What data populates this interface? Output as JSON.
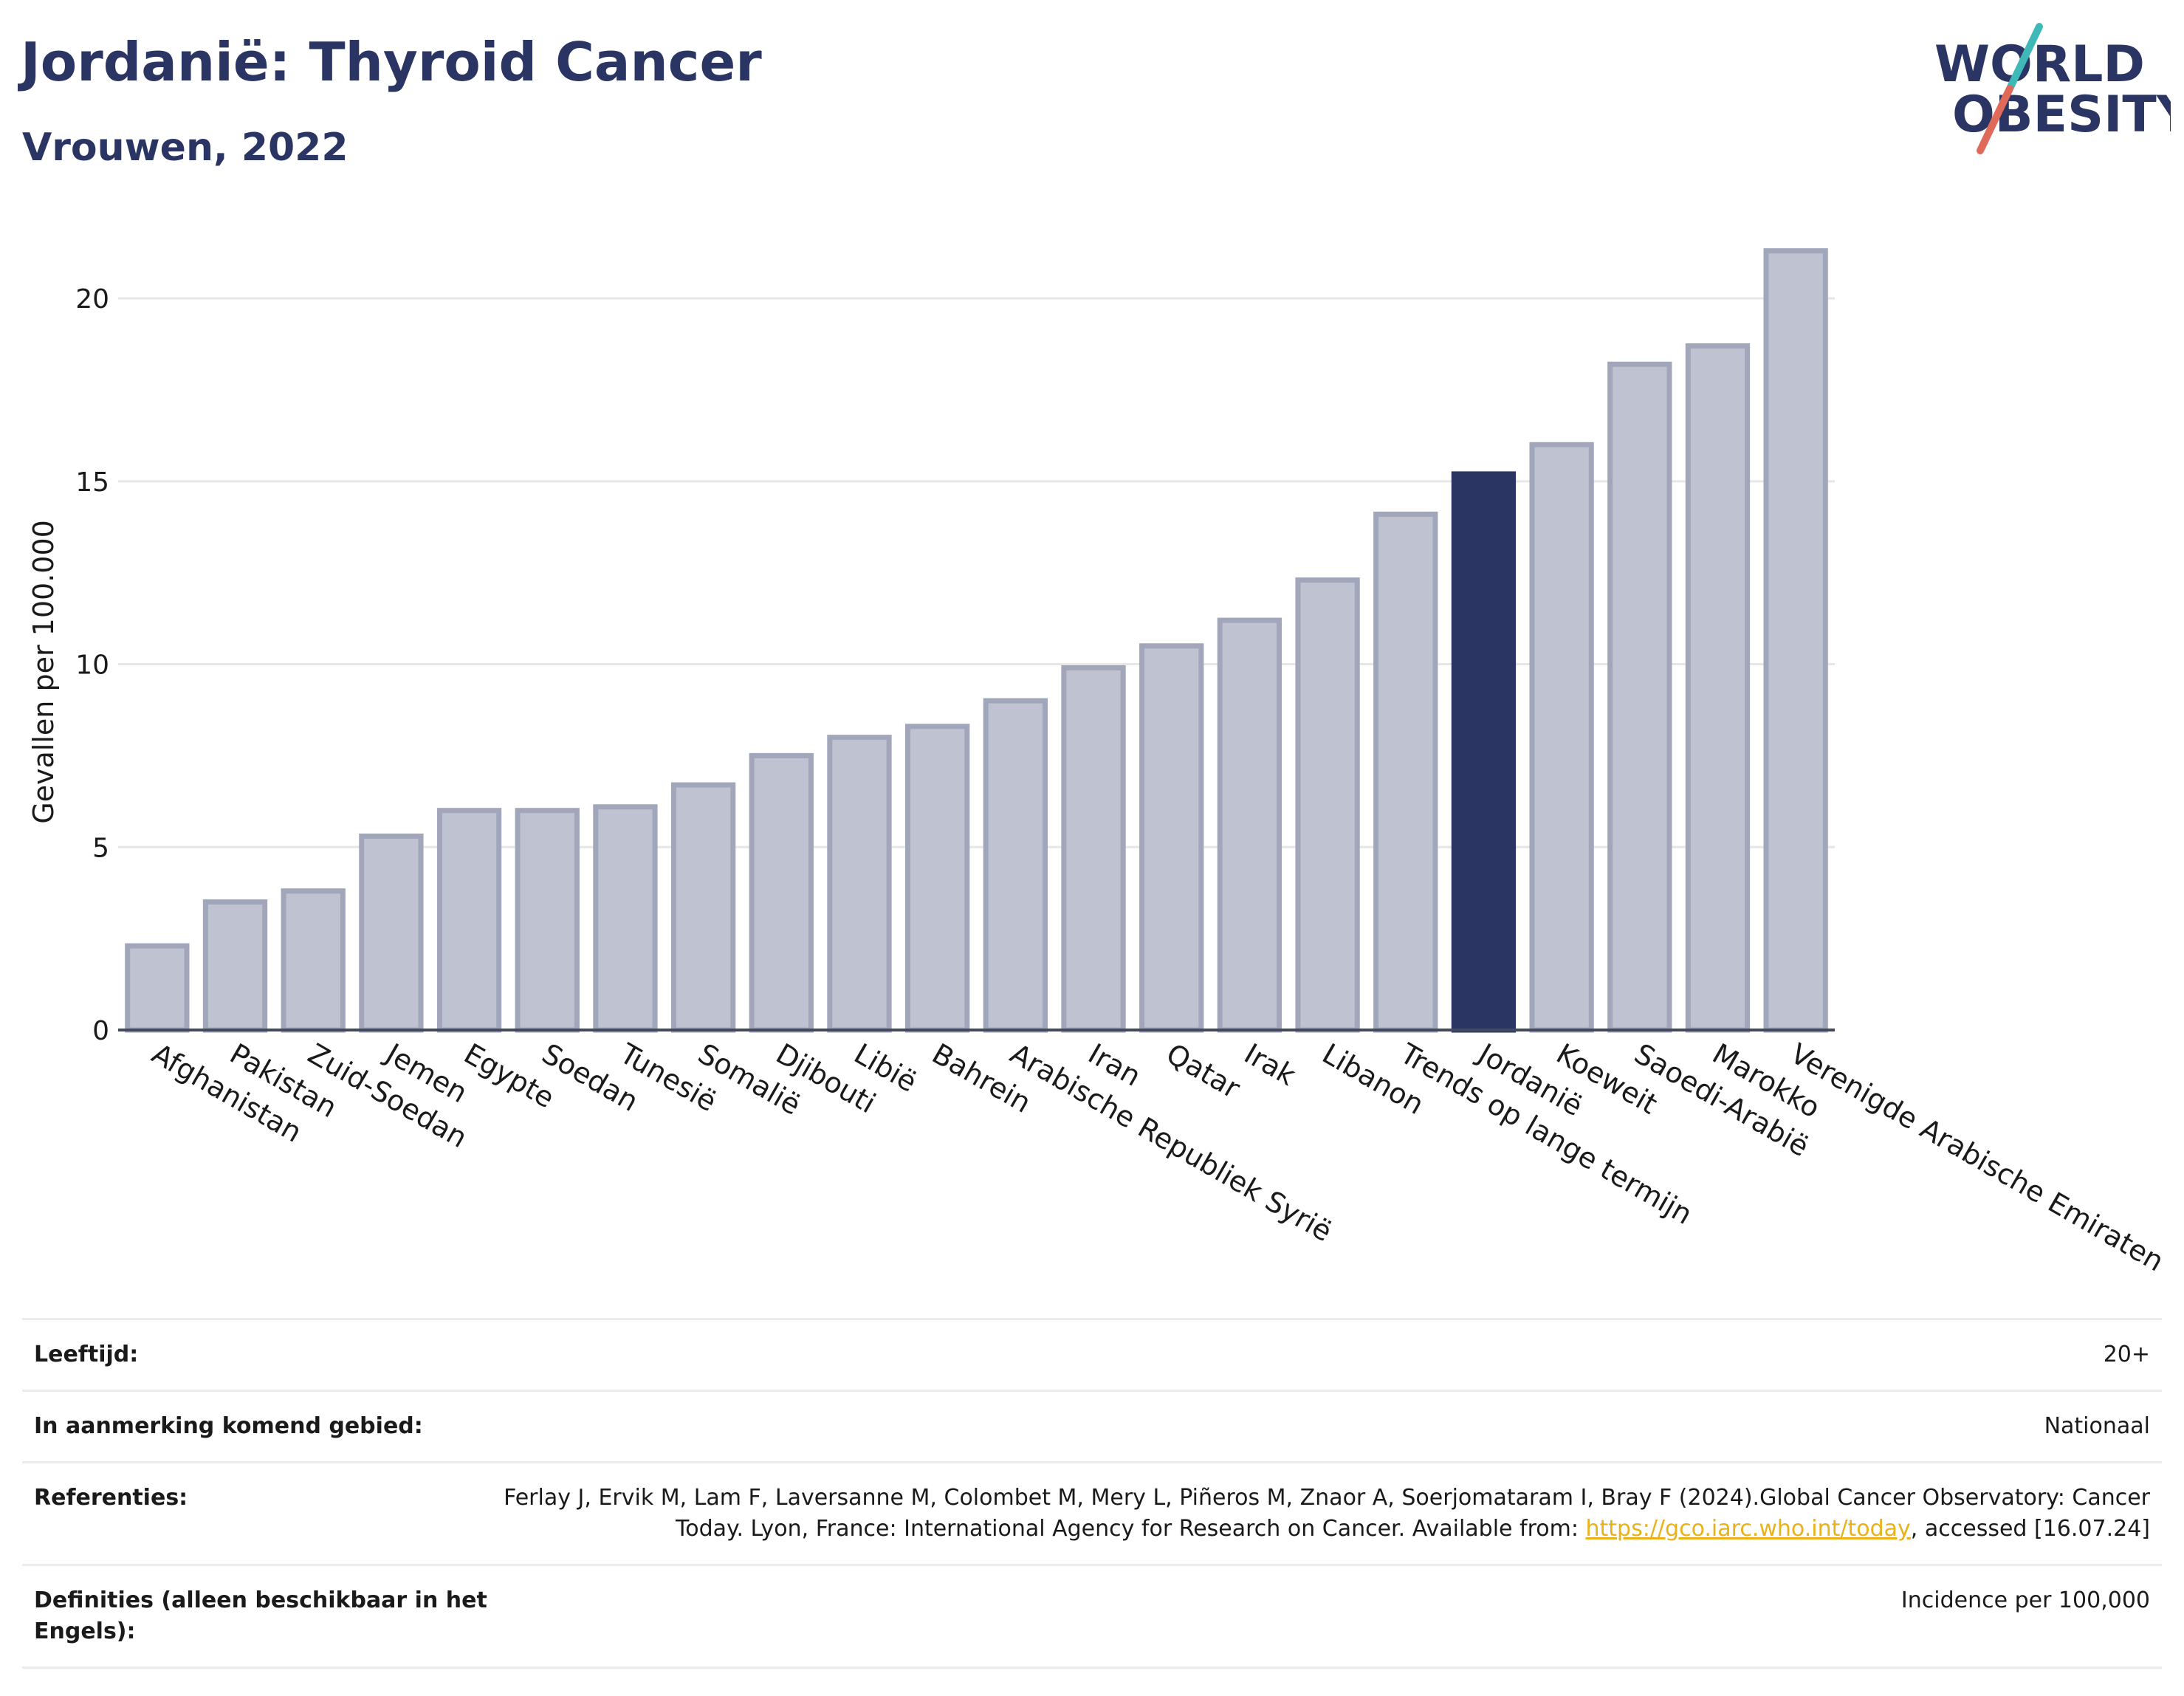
{
  "header": {
    "title": "Jordanië: Thyroid Cancer",
    "subtitle": "Vrouwen, 2022"
  },
  "logo": {
    "line1": "WORLD",
    "line2": "OBESITY",
    "colors": {
      "text": "#2a3564",
      "slash_teal": "#3fb8b8",
      "slash_red": "#e06a5a"
    }
  },
  "chart_data": {
    "type": "bar",
    "ylabel": "Gevallen per 100.000",
    "xlabel": "",
    "ylim": [
      0,
      22
    ],
    "yticks": [
      0,
      5,
      10,
      15,
      20
    ],
    "grid": true,
    "categories": [
      "Afghanistan",
      "Pakistan",
      "Zuid-Soedan",
      "Jemen",
      "Egypte",
      "Soedan",
      "Tunesië",
      "Somalië",
      "Djibouti",
      "Libië",
      "Bahrein",
      "Arabische Republiek Syrië",
      "Iran",
      "Qatar",
      "Irak",
      "Libanon",
      "Trends op lange termijn",
      "Jordanië",
      "Koeweit",
      "Saoedi-Arabië",
      "Marokko",
      "Verenigde Arabische Emiraten"
    ],
    "values": [
      2.3,
      3.5,
      3.8,
      5.3,
      6.0,
      6.0,
      6.1,
      6.7,
      7.5,
      8.0,
      8.3,
      9.0,
      9.9,
      10.5,
      11.2,
      12.3,
      14.1,
      15.2,
      16.0,
      18.2,
      18.7,
      21.3
    ],
    "highlight": "Jordanië",
    "colors": {
      "bar": "#bfc2d0",
      "bar_border": "#a1a6bb",
      "highlight": "#2a3564"
    }
  },
  "meta": {
    "age_label": "Leeftijd:",
    "age_value": "20+",
    "area_label": "In aanmerking komend gebied:",
    "area_value": "Nationaal",
    "ref_label": "Referenties:",
    "ref_text_1": "Ferlay J, Ervik M, Lam F, Laversanne M, Colombet M, Mery L, Piñeros M, Znaor A, Soerjomataram I, Bray F (2024).Global Cancer Observatory: Cancer Today. Lyon, France: International Agency for Research on Cancer. Available from: ",
    "ref_link": "https://gco.iarc.who.int/today",
    "ref_text_2": ", accessed [16.07.24]",
    "def_label": "Definities (alleen beschikbaar in het Engels):",
    "def_value": "Incidence per 100,000"
  }
}
